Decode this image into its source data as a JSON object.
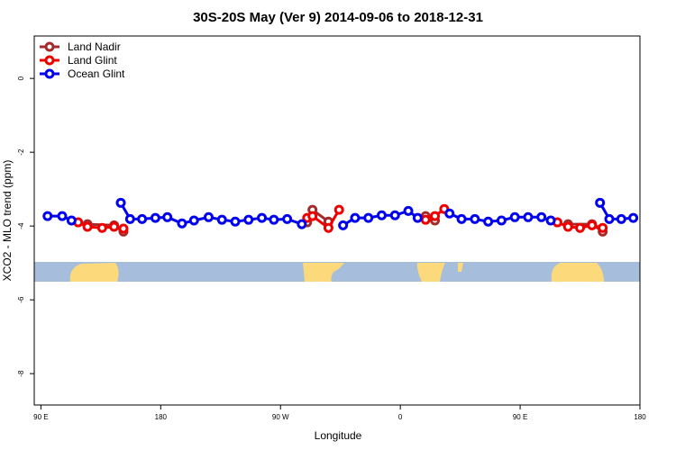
{
  "chart_data": {
    "type": "line",
    "title": "30S-20S May (Ver 9)   2014-09-06 to 2018-12-31",
    "x_label": "Longitude",
    "y_label": "XCO2 - MLO trend (ppm)",
    "xlim": [
      85,
      540
    ],
    "ylim": [
      -8.85,
      1.15
    ],
    "xticks": [
      {
        "value": 90,
        "label": "90 E"
      },
      {
        "value": 180,
        "label": "180"
      },
      {
        "value": 270,
        "label": "90 W"
      },
      {
        "value": 360,
        "label": "0"
      },
      {
        "value": 450,
        "label": "90 E"
      },
      {
        "value": 540,
        "label": "180"
      }
    ],
    "yticks": [
      0,
      -2,
      -4,
      -6,
      -8
    ],
    "legend": "top-left",
    "series": [
      {
        "name": "Land Nadir",
        "color": "#a52a2a",
        "x": [
          125,
          145,
          152,
          null,
          290,
          294,
          306,
          null,
          379,
          386,
          null,
          486,
          504,
          512
        ],
        "values": [
          -3.95,
          -3.98,
          -4.15,
          null,
          -3.9,
          -3.56,
          -3.88,
          null,
          -3.73,
          -3.85,
          null,
          -3.95,
          -3.95,
          -4.15
        ]
      },
      {
        "name": "Land Glint",
        "color": "#ee0000",
        "x": [
          118,
          125,
          136,
          145,
          152,
          null,
          290,
          294,
          306,
          314,
          null,
          379,
          386,
          393,
          null,
          478,
          486,
          495,
          504,
          512
        ],
        "values": [
          -3.9,
          -4.02,
          -4.05,
          -4.02,
          -4.07,
          null,
          -3.78,
          -3.73,
          -4.05,
          -3.56,
          null,
          -3.83,
          -3.73,
          -3.54,
          null,
          -3.9,
          -4.02,
          -4.05,
          -3.98,
          -4.05
        ]
      },
      {
        "name": "Ocean Glint",
        "color": "#0000ee",
        "x": [
          95,
          106,
          113,
          null,
          150,
          157,
          166,
          176,
          185,
          196,
          205,
          216,
          226,
          236,
          246,
          256,
          265,
          275,
          286,
          null,
          317,
          326,
          336,
          346,
          356,
          366,
          373,
          null,
          397,
          406,
          416,
          426,
          436,
          446,
          456,
          466,
          473,
          null,
          510,
          517,
          526,
          535
        ],
        "values": [
          -3.73,
          -3.73,
          -3.85,
          null,
          -3.37,
          -3.81,
          -3.81,
          -3.78,
          -3.76,
          -3.93,
          -3.85,
          -3.76,
          -3.83,
          -3.88,
          -3.83,
          -3.78,
          -3.83,
          -3.81,
          -3.95,
          null,
          -3.98,
          -3.78,
          -3.78,
          -3.71,
          -3.71,
          -3.59,
          -3.78,
          null,
          -3.66,
          -3.81,
          -3.81,
          -3.88,
          -3.85,
          -3.76,
          -3.76,
          -3.76,
          -3.85,
          null,
          -3.37,
          -3.81,
          -3.81,
          -3.78
        ]
      }
    ]
  }
}
